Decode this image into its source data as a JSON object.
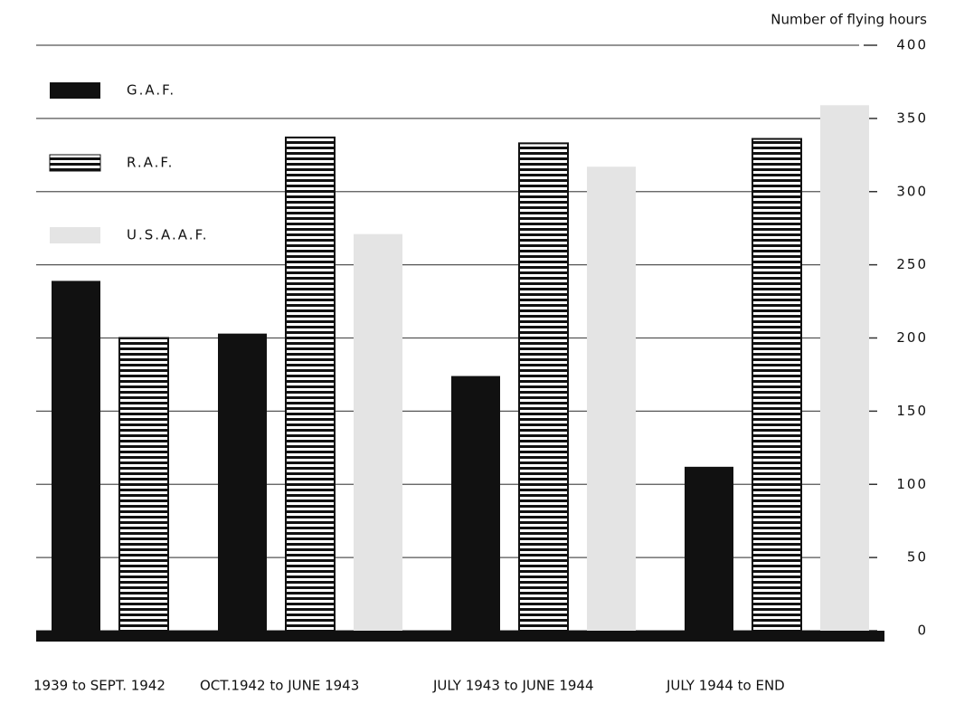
{
  "chart_data": {
    "type": "bar",
    "y_axis_label": "Number of flying hours",
    "categories": [
      "1939 to SEPT. 1942",
      "OCT.1942 to JUNE 1943",
      "JULY 1943 to JUNE 1944",
      "JULY 1944 to END"
    ],
    "series": [
      {
        "name": "G.A.F.",
        "color": "#111111",
        "values": [
          239,
          203,
          174,
          112
        ]
      },
      {
        "name": "R.A.F.",
        "color": "#111111",
        "hatch": "horizontal",
        "values": [
          200,
          337,
          333,
          336
        ]
      },
      {
        "name": "U.S.A.A.F.",
        "color": "#e4e4e4",
        "values": [
          null,
          271,
          317,
          359
        ]
      }
    ],
    "ylim": [
      0,
      400
    ],
    "yticks": [
      0,
      50,
      100,
      150,
      200,
      250,
      300,
      350,
      400
    ],
    "grid": true,
    "legend": "upper left"
  }
}
